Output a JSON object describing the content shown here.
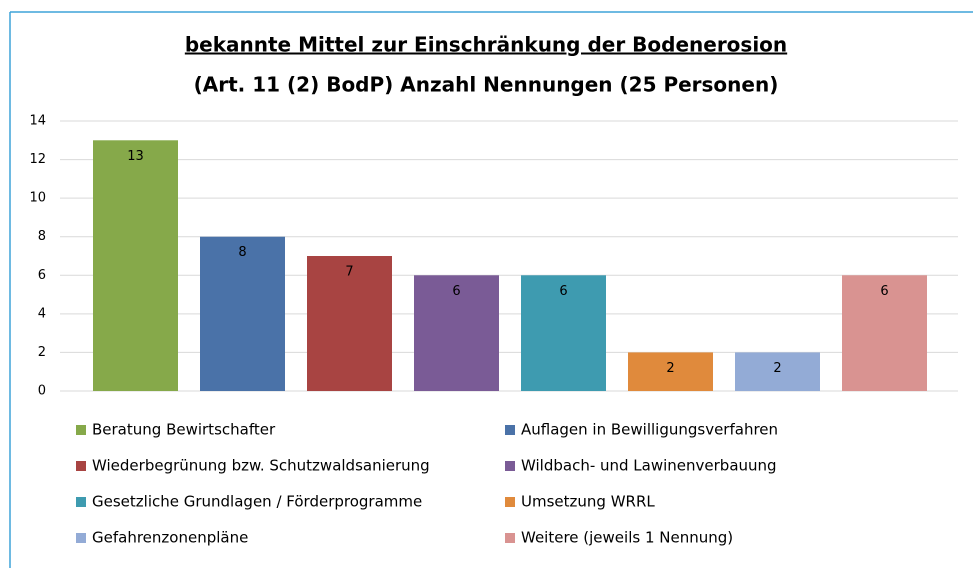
{
  "chart_data": {
    "type": "bar",
    "title": "bekannte Mittel zur Einschränkung der Bodenerosion",
    "subtitle": "(Art. 11 (2) BodP) Anzahl Nennungen (25 Personen)",
    "series": [
      {
        "name": "Beratung Bewirtschafter",
        "color": "#86a94a",
        "values": [
          13
        ]
      },
      {
        "name": "Auflagen in Bewilligungsverfahren",
        "color": "#4a72a8",
        "values": [
          8
        ]
      },
      {
        "name": "Wiederbegrünung  bzw. Schutzwaldsanierung",
        "color": "#a84442",
        "values": [
          7
        ]
      },
      {
        "name": "Wildbach- und Lawinenverbauung",
        "color": "#7a5b96",
        "values": [
          6
        ]
      },
      {
        "name": "Gesetzliche Grundlagen / Förderprogramme",
        "color": "#3e9bb0",
        "values": [
          6
        ]
      },
      {
        "name": "Umsetzung WRRL",
        "color": "#e08a3c",
        "values": [
          2
        ]
      },
      {
        "name": "Gefahrenzonenpläne",
        "color": "#93abd6",
        "values": [
          2
        ]
      },
      {
        "name": "Weitere (jeweils 1 Nennung)",
        "color": "#d99391",
        "values": [
          6
        ]
      }
    ],
    "ylim": [
      0,
      14
    ],
    "yticks": [
      0,
      2,
      4,
      6,
      8,
      10,
      12,
      14
    ],
    "grid": true
  }
}
